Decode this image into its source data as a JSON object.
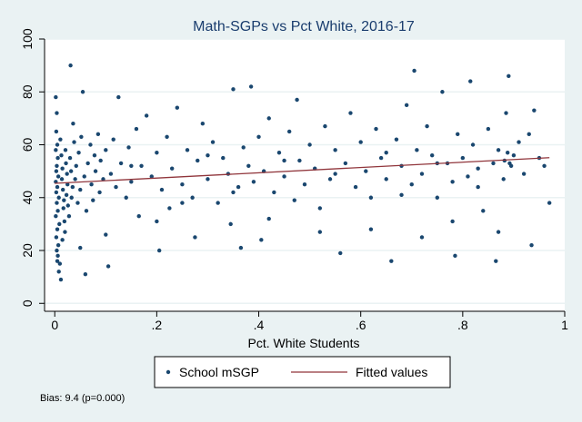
{
  "chart_data": {
    "type": "scatter",
    "title": "Math-SGPs vs Pct White, 2016-17",
    "xlabel": "Pct. White Students",
    "ylabel": "",
    "xlim": [
      -0.02,
      1.0
    ],
    "ylim": [
      -3,
      100
    ],
    "x_ticks": [
      0,
      0.2,
      0.4,
      0.6,
      0.8,
      1
    ],
    "x_tick_labels": [
      "0",
      ".2",
      ".4",
      ".6",
      ".8",
      "1"
    ],
    "y_ticks": [
      0,
      20,
      40,
      60,
      80,
      100
    ],
    "y_tick_labels": [
      "0",
      "20",
      "40",
      "60",
      "80",
      "100"
    ],
    "grid": "horizontal",
    "legend_position": "bottom",
    "series": [
      {
        "name": "School mSGP",
        "kind": "scatter",
        "color": "#1a476f",
        "points": [
          [
            0.002,
            78
          ],
          [
            0.004,
            72
          ],
          [
            0.003,
            65
          ],
          [
            0.005,
            60
          ],
          [
            0.002,
            58
          ],
          [
            0.006,
            55
          ],
          [
            0.004,
            52
          ],
          [
            0.003,
            50
          ],
          [
            0.007,
            48
          ],
          [
            0.002,
            46
          ],
          [
            0.005,
            44
          ],
          [
            0.003,
            42
          ],
          [
            0.008,
            40
          ],
          [
            0.004,
            38
          ],
          [
            0.006,
            35
          ],
          [
            0.002,
            33
          ],
          [
            0.009,
            30
          ],
          [
            0.005,
            28
          ],
          [
            0.003,
            25
          ],
          [
            0.007,
            22
          ],
          [
            0.004,
            20
          ],
          [
            0.006,
            18
          ],
          [
            0.01,
            15
          ],
          [
            0.008,
            12
          ],
          [
            0.005,
            16
          ],
          [
            0.012,
            9
          ],
          [
            0.011,
            62
          ],
          [
            0.013,
            56
          ],
          [
            0.015,
            51
          ],
          [
            0.014,
            47
          ],
          [
            0.016,
            43
          ],
          [
            0.018,
            39
          ],
          [
            0.017,
            36
          ],
          [
            0.019,
            31
          ],
          [
            0.02,
            27
          ],
          [
            0.021,
            58
          ],
          [
            0.022,
            53
          ],
          [
            0.024,
            49
          ],
          [
            0.025,
            45
          ],
          [
            0.023,
            41
          ],
          [
            0.026,
            37
          ],
          [
            0.028,
            33
          ],
          [
            0.03,
            55
          ],
          [
            0.032,
            50
          ],
          [
            0.035,
            44
          ],
          [
            0.033,
            40
          ],
          [
            0.031,
            90
          ],
          [
            0.036,
            68
          ],
          [
            0.038,
            61
          ],
          [
            0.04,
            47
          ],
          [
            0.042,
            52
          ],
          [
            0.045,
            38
          ],
          [
            0.047,
            57
          ],
          [
            0.05,
            43
          ],
          [
            0.052,
            63
          ],
          [
            0.055,
            80
          ],
          [
            0.058,
            48
          ],
          [
            0.06,
            11
          ],
          [
            0.062,
            35
          ],
          [
            0.065,
            53
          ],
          [
            0.07,
            60
          ],
          [
            0.072,
            45
          ],
          [
            0.075,
            39
          ],
          [
            0.078,
            56
          ],
          [
            0.08,
            50
          ],
          [
            0.085,
            64
          ],
          [
            0.088,
            42
          ],
          [
            0.09,
            54
          ],
          [
            0.095,
            47
          ],
          [
            0.1,
            58
          ],
          [
            0.105,
            14
          ],
          [
            0.11,
            49
          ],
          [
            0.115,
            62
          ],
          [
            0.12,
            44
          ],
          [
            0.125,
            78
          ],
          [
            0.13,
            53
          ],
          [
            0.14,
            40
          ],
          [
            0.145,
            59
          ],
          [
            0.15,
            46
          ],
          [
            0.16,
            66
          ],
          [
            0.165,
            33
          ],
          [
            0.17,
            52
          ],
          [
            0.18,
            71
          ],
          [
            0.19,
            48
          ],
          [
            0.2,
            57
          ],
          [
            0.205,
            20
          ],
          [
            0.21,
            43
          ],
          [
            0.22,
            63
          ],
          [
            0.225,
            36
          ],
          [
            0.23,
            51
          ],
          [
            0.24,
            74
          ],
          [
            0.25,
            45
          ],
          [
            0.26,
            58
          ],
          [
            0.27,
            40
          ],
          [
            0.275,
            25
          ],
          [
            0.28,
            54
          ],
          [
            0.29,
            68
          ],
          [
            0.3,
            47
          ],
          [
            0.31,
            61
          ],
          [
            0.32,
            38
          ],
          [
            0.33,
            55
          ],
          [
            0.34,
            49
          ],
          [
            0.345,
            30
          ],
          [
            0.35,
            81
          ],
          [
            0.36,
            44
          ],
          [
            0.365,
            21
          ],
          [
            0.37,
            59
          ],
          [
            0.38,
            52
          ],
          [
            0.385,
            82
          ],
          [
            0.39,
            46
          ],
          [
            0.4,
            63
          ],
          [
            0.405,
            24
          ],
          [
            0.41,
            50
          ],
          [
            0.42,
            70
          ],
          [
            0.43,
            42
          ],
          [
            0.44,
            57
          ],
          [
            0.45,
            48
          ],
          [
            0.46,
            65
          ],
          [
            0.47,
            39
          ],
          [
            0.475,
            77
          ],
          [
            0.48,
            54
          ],
          [
            0.49,
            45
          ],
          [
            0.5,
            60
          ],
          [
            0.51,
            51
          ],
          [
            0.52,
            36
          ],
          [
            0.53,
            67
          ],
          [
            0.54,
            47
          ],
          [
            0.55,
            58
          ],
          [
            0.56,
            19
          ],
          [
            0.57,
            53
          ],
          [
            0.58,
            72
          ],
          [
            0.59,
            44
          ],
          [
            0.6,
            61
          ],
          [
            0.61,
            50
          ],
          [
            0.62,
            40
          ],
          [
            0.63,
            66
          ],
          [
            0.64,
            55
          ],
          [
            0.65,
            47
          ],
          [
            0.66,
            16
          ],
          [
            0.67,
            62
          ],
          [
            0.68,
            52
          ],
          [
            0.69,
            75
          ],
          [
            0.7,
            45
          ],
          [
            0.705,
            88
          ],
          [
            0.71,
            58
          ],
          [
            0.72,
            49
          ],
          [
            0.73,
            67
          ],
          [
            0.74,
            56
          ],
          [
            0.75,
            40
          ],
          [
            0.76,
            80
          ],
          [
            0.77,
            53
          ],
          [
            0.78,
            46
          ],
          [
            0.785,
            18
          ],
          [
            0.79,
            64
          ],
          [
            0.8,
            55
          ],
          [
            0.81,
            48
          ],
          [
            0.815,
            84
          ],
          [
            0.82,
            60
          ],
          [
            0.83,
            51
          ],
          [
            0.84,
            35
          ],
          [
            0.85,
            66
          ],
          [
            0.86,
            53
          ],
          [
            0.865,
            16
          ],
          [
            0.87,
            58
          ],
          [
            0.88,
            47
          ],
          [
            0.885,
            72
          ],
          [
            0.89,
            86
          ],
          [
            0.9,
            56
          ],
          [
            0.91,
            61
          ],
          [
            0.92,
            49
          ],
          [
            0.93,
            64
          ],
          [
            0.935,
            22
          ],
          [
            0.94,
            73
          ],
          [
            0.95,
            55
          ],
          [
            0.96,
            52
          ],
          [
            0.97,
            38
          ],
          [
            0.895,
            52
          ],
          [
            0.882,
            54
          ],
          [
            0.888,
            57
          ],
          [
            0.892,
            53
          ],
          [
            0.3,
            56
          ],
          [
            0.15,
            52
          ],
          [
            0.45,
            54
          ],
          [
            0.55,
            49
          ],
          [
            0.65,
            57
          ],
          [
            0.75,
            53
          ],
          [
            0.35,
            42
          ],
          [
            0.25,
            38
          ],
          [
            0.62,
            28
          ],
          [
            0.78,
            31
          ],
          [
            0.2,
            31
          ],
          [
            0.52,
            27
          ],
          [
            0.72,
            25
          ],
          [
            0.87,
            27
          ],
          [
            0.42,
            32
          ],
          [
            0.1,
            26
          ],
          [
            0.05,
            21
          ],
          [
            0.015,
            24
          ],
          [
            0.68,
            41
          ],
          [
            0.83,
            44
          ]
        ]
      },
      {
        "name": "Fitted values",
        "kind": "line",
        "color": "#90353b",
        "x": [
          0.0,
          0.97
        ],
        "y": [
          45.4,
          55.1
        ]
      }
    ],
    "note": "Bias:  9.4 (p=0.000)"
  }
}
